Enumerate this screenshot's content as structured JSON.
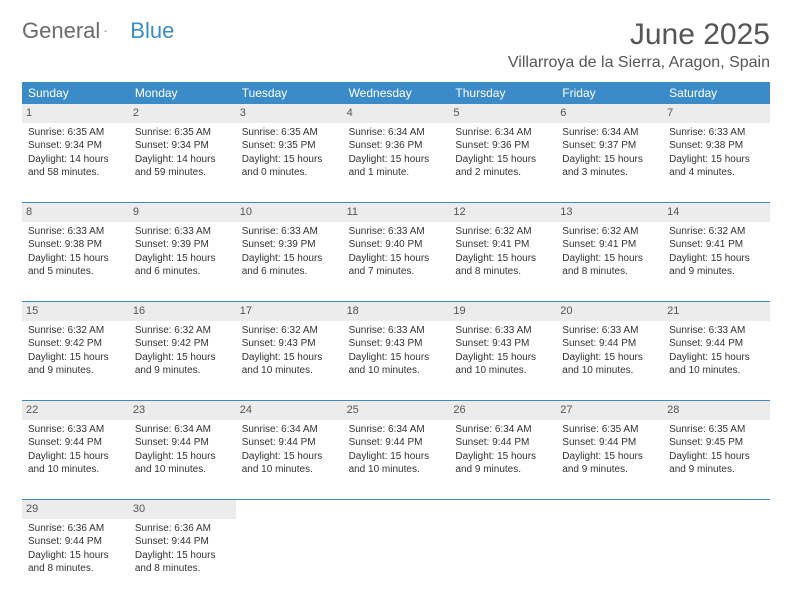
{
  "brand": {
    "part1": "General",
    "part2": "Blue"
  },
  "title": "June 2025",
  "location": "Villarroya de la Sierra, Aragon, Spain",
  "colors": {
    "header_bg": "#3b8bc9",
    "daynum_bg": "#ececec",
    "rule": "#3b8bc9",
    "text": "#333333",
    "muted": "#555555"
  },
  "dow": [
    "Sunday",
    "Monday",
    "Tuesday",
    "Wednesday",
    "Thursday",
    "Friday",
    "Saturday"
  ],
  "weeks": [
    [
      {
        "n": "1",
        "sr": "Sunrise: 6:35 AM",
        "ss": "Sunset: 9:34 PM",
        "dl": "Daylight: 14 hours and 58 minutes."
      },
      {
        "n": "2",
        "sr": "Sunrise: 6:35 AM",
        "ss": "Sunset: 9:34 PM",
        "dl": "Daylight: 14 hours and 59 minutes."
      },
      {
        "n": "3",
        "sr": "Sunrise: 6:35 AM",
        "ss": "Sunset: 9:35 PM",
        "dl": "Daylight: 15 hours and 0 minutes."
      },
      {
        "n": "4",
        "sr": "Sunrise: 6:34 AM",
        "ss": "Sunset: 9:36 PM",
        "dl": "Daylight: 15 hours and 1 minute."
      },
      {
        "n": "5",
        "sr": "Sunrise: 6:34 AM",
        "ss": "Sunset: 9:36 PM",
        "dl": "Daylight: 15 hours and 2 minutes."
      },
      {
        "n": "6",
        "sr": "Sunrise: 6:34 AM",
        "ss": "Sunset: 9:37 PM",
        "dl": "Daylight: 15 hours and 3 minutes."
      },
      {
        "n": "7",
        "sr": "Sunrise: 6:33 AM",
        "ss": "Sunset: 9:38 PM",
        "dl": "Daylight: 15 hours and 4 minutes."
      }
    ],
    [
      {
        "n": "8",
        "sr": "Sunrise: 6:33 AM",
        "ss": "Sunset: 9:38 PM",
        "dl": "Daylight: 15 hours and 5 minutes."
      },
      {
        "n": "9",
        "sr": "Sunrise: 6:33 AM",
        "ss": "Sunset: 9:39 PM",
        "dl": "Daylight: 15 hours and 6 minutes."
      },
      {
        "n": "10",
        "sr": "Sunrise: 6:33 AM",
        "ss": "Sunset: 9:39 PM",
        "dl": "Daylight: 15 hours and 6 minutes."
      },
      {
        "n": "11",
        "sr": "Sunrise: 6:33 AM",
        "ss": "Sunset: 9:40 PM",
        "dl": "Daylight: 15 hours and 7 minutes."
      },
      {
        "n": "12",
        "sr": "Sunrise: 6:32 AM",
        "ss": "Sunset: 9:41 PM",
        "dl": "Daylight: 15 hours and 8 minutes."
      },
      {
        "n": "13",
        "sr": "Sunrise: 6:32 AM",
        "ss": "Sunset: 9:41 PM",
        "dl": "Daylight: 15 hours and 8 minutes."
      },
      {
        "n": "14",
        "sr": "Sunrise: 6:32 AM",
        "ss": "Sunset: 9:41 PM",
        "dl": "Daylight: 15 hours and 9 minutes."
      }
    ],
    [
      {
        "n": "15",
        "sr": "Sunrise: 6:32 AM",
        "ss": "Sunset: 9:42 PM",
        "dl": "Daylight: 15 hours and 9 minutes."
      },
      {
        "n": "16",
        "sr": "Sunrise: 6:32 AM",
        "ss": "Sunset: 9:42 PM",
        "dl": "Daylight: 15 hours and 9 minutes."
      },
      {
        "n": "17",
        "sr": "Sunrise: 6:32 AM",
        "ss": "Sunset: 9:43 PM",
        "dl": "Daylight: 15 hours and 10 minutes."
      },
      {
        "n": "18",
        "sr": "Sunrise: 6:33 AM",
        "ss": "Sunset: 9:43 PM",
        "dl": "Daylight: 15 hours and 10 minutes."
      },
      {
        "n": "19",
        "sr": "Sunrise: 6:33 AM",
        "ss": "Sunset: 9:43 PM",
        "dl": "Daylight: 15 hours and 10 minutes."
      },
      {
        "n": "20",
        "sr": "Sunrise: 6:33 AM",
        "ss": "Sunset: 9:44 PM",
        "dl": "Daylight: 15 hours and 10 minutes."
      },
      {
        "n": "21",
        "sr": "Sunrise: 6:33 AM",
        "ss": "Sunset: 9:44 PM",
        "dl": "Daylight: 15 hours and 10 minutes."
      }
    ],
    [
      {
        "n": "22",
        "sr": "Sunrise: 6:33 AM",
        "ss": "Sunset: 9:44 PM",
        "dl": "Daylight: 15 hours and 10 minutes."
      },
      {
        "n": "23",
        "sr": "Sunrise: 6:34 AM",
        "ss": "Sunset: 9:44 PM",
        "dl": "Daylight: 15 hours and 10 minutes."
      },
      {
        "n": "24",
        "sr": "Sunrise: 6:34 AM",
        "ss": "Sunset: 9:44 PM",
        "dl": "Daylight: 15 hours and 10 minutes."
      },
      {
        "n": "25",
        "sr": "Sunrise: 6:34 AM",
        "ss": "Sunset: 9:44 PM",
        "dl": "Daylight: 15 hours and 10 minutes."
      },
      {
        "n": "26",
        "sr": "Sunrise: 6:34 AM",
        "ss": "Sunset: 9:44 PM",
        "dl": "Daylight: 15 hours and 9 minutes."
      },
      {
        "n": "27",
        "sr": "Sunrise: 6:35 AM",
        "ss": "Sunset: 9:44 PM",
        "dl": "Daylight: 15 hours and 9 minutes."
      },
      {
        "n": "28",
        "sr": "Sunrise: 6:35 AM",
        "ss": "Sunset: 9:45 PM",
        "dl": "Daylight: 15 hours and 9 minutes."
      }
    ],
    [
      {
        "n": "29",
        "sr": "Sunrise: 6:36 AM",
        "ss": "Sunset: 9:44 PM",
        "dl": "Daylight: 15 hours and 8 minutes."
      },
      {
        "n": "30",
        "sr": "Sunrise: 6:36 AM",
        "ss": "Sunset: 9:44 PM",
        "dl": "Daylight: 15 hours and 8 minutes."
      },
      null,
      null,
      null,
      null,
      null
    ]
  ]
}
